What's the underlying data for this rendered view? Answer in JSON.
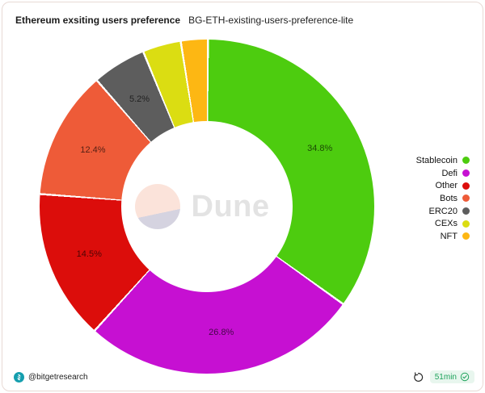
{
  "header": {
    "title": "Ethereum exsiting users preference",
    "subtitle": "BG-ETH-existing-users-preference-lite"
  },
  "chart_data": {
    "type": "pie",
    "subtype": "donut",
    "title": "Ethereum exsiting users preference",
    "legend_position": "right",
    "hole_ratio": 0.51,
    "series": [
      {
        "name": "Stablecoin",
        "value": 34.8,
        "label": "34.8%",
        "color": "#4dcc0f",
        "label_visible": true
      },
      {
        "name": "Defi",
        "value": 26.8,
        "label": "26.8%",
        "color": "#c610d2",
        "label_visible": true
      },
      {
        "name": "Other",
        "value": 14.5,
        "label": "14.5%",
        "color": "#dc0d0b",
        "label_visible": true
      },
      {
        "name": "Bots",
        "value": 12.4,
        "label": "12.4%",
        "color": "#ee5b38",
        "label_visible": true
      },
      {
        "name": "ERC20",
        "value": 5.2,
        "label": "5.2%",
        "color": "#5d5d5d",
        "label_visible": true
      },
      {
        "name": "CEXs",
        "value": 3.7,
        "label": "",
        "color": "#dbdd12",
        "label_visible": false
      },
      {
        "name": "NFT",
        "value": 2.6,
        "label": "",
        "color": "#fdb713",
        "label_visible": false
      }
    ]
  },
  "watermark": {
    "text": "Dune"
  },
  "footer": {
    "author": "@bitgetresearch",
    "freshness": "51min"
  },
  "colors": {
    "badge_bg": "#e8f6ee",
    "badge_text": "#1fa35c",
    "bitget_teal": "#149eae",
    "card_border": "#e8dad5"
  }
}
